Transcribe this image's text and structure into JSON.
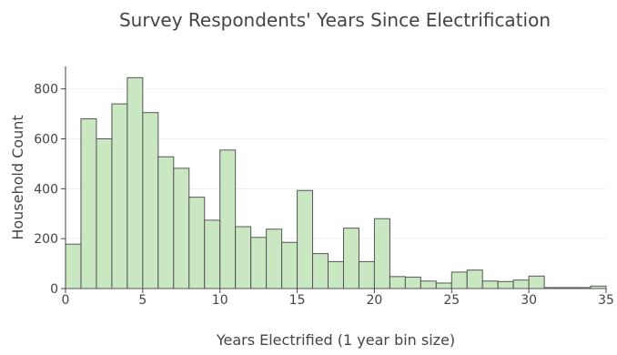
{
  "chart_data": {
    "type": "bar",
    "title": "Survey Respondents' Years Since Electrification",
    "xlabel": "Years Electrified (1 year bin size)",
    "ylabel": "Household Count",
    "xlim": [
      0,
      35
    ],
    "ylim": [
      0,
      890
    ],
    "xticks": [
      0,
      5,
      10,
      15,
      20,
      25,
      30,
      35
    ],
    "yticks": [
      0,
      200,
      400,
      600,
      800
    ],
    "grid": true,
    "bin_size": 1,
    "bins": [
      0,
      1,
      2,
      3,
      4,
      5,
      6,
      7,
      8,
      9,
      10,
      11,
      12,
      13,
      14,
      15,
      16,
      17,
      18,
      19,
      20,
      21,
      22,
      23,
      24,
      25,
      26,
      27,
      28,
      29,
      30,
      31,
      32,
      33,
      34
    ],
    "values": [
      178,
      680,
      600,
      740,
      845,
      705,
      528,
      482,
      366,
      274,
      555,
      248,
      205,
      238,
      185,
      393,
      140,
      108,
      242,
      108,
      280,
      48,
      46,
      30,
      22,
      66,
      74,
      30,
      28,
      34,
      50,
      4,
      4,
      4,
      10
    ]
  }
}
